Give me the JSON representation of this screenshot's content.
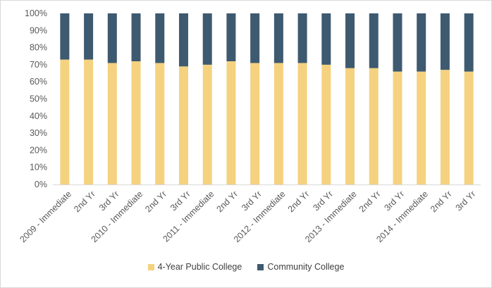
{
  "chart_data": {
    "type": "bar",
    "stacked": true,
    "percent_stacked": true,
    "categories": [
      "2009 - Immediate",
      "2nd Yr",
      "3rd Yr",
      "2010 - Immediate",
      "2nd Yr",
      "3rd Yr",
      "2011 - Immediate",
      "2nd Yr",
      "3rd Yr",
      "2012 - Immediate",
      "2nd Yr",
      "3rd Yr",
      "2013 - Immediate",
      "2nd Yr",
      "3rd Yr",
      "2014 - Immediate",
      "2nd Yr",
      "3rd Yr"
    ],
    "series": [
      {
        "name": "4-Year Public College",
        "color": "#f5d27f",
        "values": [
          73,
          73,
          71,
          72,
          71,
          69,
          70,
          72,
          71,
          71,
          71,
          70,
          68,
          68,
          66,
          66,
          67,
          66
        ]
      },
      {
        "name": "Community College",
        "color": "#3e5a70",
        "values": [
          27,
          27,
          29,
          28,
          29,
          31,
          30,
          28,
          29,
          29,
          29,
          30,
          32,
          32,
          34,
          34,
          33,
          34
        ]
      }
    ],
    "yticks": [
      "0%",
      "10%",
      "20%",
      "30%",
      "40%",
      "50%",
      "60%",
      "70%",
      "80%",
      "90%",
      "100%"
    ],
    "ylim": [
      0,
      100
    ],
    "grid": false,
    "legend_position": "bottom"
  }
}
